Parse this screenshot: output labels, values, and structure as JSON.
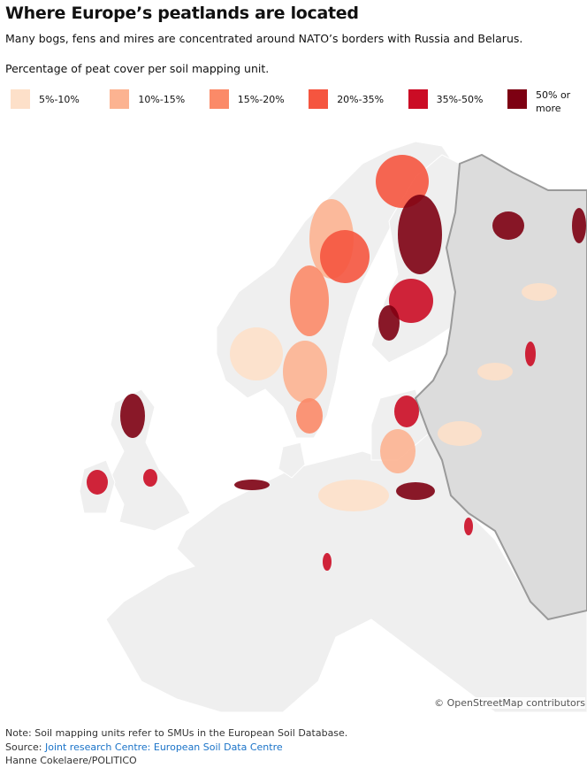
{
  "header": {
    "title": "Where Europe’s peatlands are located",
    "subtitle": "Many bogs, fens and mires are concentrated around NATO’s borders with Russia and Belarus."
  },
  "legend": {
    "title": "Percentage of peat cover per soil mapping unit.",
    "items": [
      {
        "label": "5%-10%",
        "color": "#fde0c9"
      },
      {
        "label": "10%-15%",
        "color": "#fcb391"
      },
      {
        "label": "15%-20%",
        "color": "#fb8a68"
      },
      {
        "label": "20%-35%",
        "color": "#f5553f"
      },
      {
        "label": "35%-50%",
        "color": "#cb0c25"
      },
      {
        "label": "50% or more",
        "color": "#7d0012"
      }
    ]
  },
  "map": {
    "attribution": "© OpenStreetMap contributors"
  },
  "footer": {
    "note": "Note: Soil mapping units refer to SMUs in the European Soil Database.",
    "source_label": "Source:",
    "source_link": "Joint research Centre: European Soil Data Centre",
    "credit": "Hanne Cokelaere/POLITICO"
  }
}
